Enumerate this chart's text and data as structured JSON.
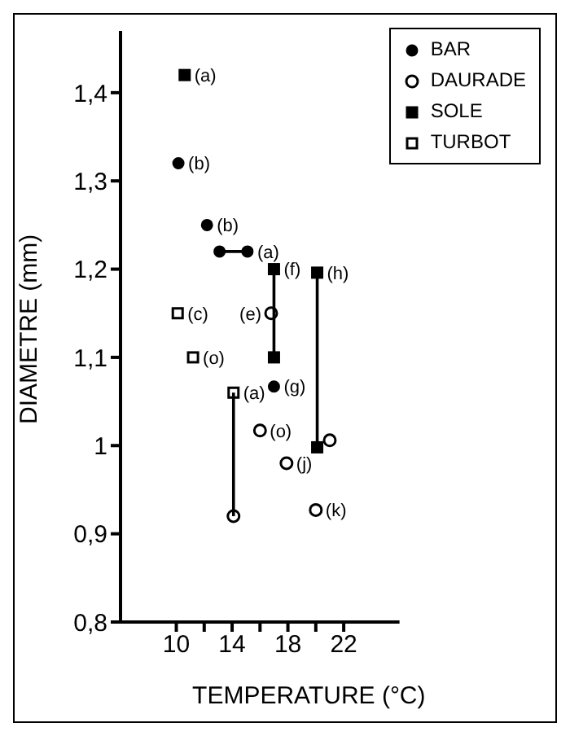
{
  "chart_data": {
    "type": "scatter",
    "xlabel": "TEMPERATURE (°C)",
    "ylabel": "DIAMETRE  (mm)",
    "xlim": [
      6,
      26
    ],
    "xticks": [
      10,
      {
        "value": 12,
        "label": null
      },
      14,
      {
        "value": 16,
        "label": null
      },
      18,
      {
        "value": 20,
        "label": null
      },
      22
    ],
    "ylim": [
      0.8,
      1.47
    ],
    "yticks": [
      {
        "value": 0.8,
        "label": "0,8"
      },
      {
        "value": 0.9,
        "label": "0,9"
      },
      1,
      {
        "value": 1.1,
        "label": "1,1"
      },
      {
        "value": 1.2,
        "label": "1,2"
      },
      {
        "value": 1.3,
        "label": "1,3"
      },
      {
        "value": 1.4,
        "label": "1,4"
      }
    ],
    "legend": "top right",
    "grid": false,
    "series": [
      {
        "name": "BAR",
        "color": "#000000",
        "marker": "circle",
        "x": [
          10.15,
          12.2,
          13.1,
          15.1,
          17.0
        ],
        "values": [
          1.32,
          1.25,
          1.22,
          1.22,
          1.067
        ]
      },
      {
        "name": "DAURADE",
        "color": "#ffffff",
        "marker": "circle",
        "x": [
          14.1,
          16.8,
          16.0,
          17.9,
          21.0,
          20.0
        ],
        "values": [
          0.92,
          1.15,
          1.017,
          0.98,
          1.006,
          0.927
        ]
      },
      {
        "name": "SOLE",
        "color": "#000000",
        "marker": "square",
        "x": [
          10.6,
          17.0,
          17.0,
          20.1,
          20.1
        ],
        "values": [
          1.42,
          1.2,
          1.1,
          1.196,
          0.998
        ]
      },
      {
        "name": "TURBOT",
        "color": "#ffffff",
        "marker": "square",
        "x": [
          10.1,
          11.2,
          14.1
        ],
        "values": [
          1.15,
          1.1,
          1.06
        ]
      },
      {
        "type": "line",
        "color": "#000000",
        "marker": "none",
        "x": [
          13.1,
          15.1
        ],
        "values": [
          1.22,
          1.22
        ]
      },
      {
        "type": "line",
        "color": "#000000",
        "marker": "none",
        "x": [
          14.1,
          14.1
        ],
        "values": [
          1.06,
          0.92
        ]
      },
      {
        "type": "line",
        "color": "#000000",
        "marker": "none",
        "x": [
          17.0,
          17.0
        ],
        "values": [
          1.2,
          1.1
        ]
      },
      {
        "type": "line",
        "color": "#000000",
        "marker": "none",
        "x": [
          20.1,
          20.1
        ],
        "values": [
          1.196,
          0.998
        ]
      }
    ],
    "annotations": [
      {
        "text": "(a)",
        "x": 10.6,
        "y": 1.42
      },
      {
        "text": "(b)",
        "x": 10.15,
        "y": 1.32
      },
      {
        "text": "(b)",
        "x": 12.2,
        "y": 1.25
      },
      {
        "text": "(a)",
        "x": 15.1,
        "y": 1.22
      },
      {
        "text": "(f)",
        "x": 17.0,
        "y": 1.2
      },
      {
        "text": "(h)",
        "x": 20.1,
        "y": 1.196
      },
      {
        "text": "(c)",
        "x": 10.1,
        "y": 1.15
      },
      {
        "text": "(e)",
        "x": 16.8,
        "y": 1.15
      },
      {
        "text": "(o)",
        "x": 11.2,
        "y": 1.1
      },
      {
        "text": "(a)",
        "x": 14.1,
        "y": 1.06
      },
      {
        "text": "(g)",
        "x": 17.0,
        "y": 1.067
      },
      {
        "text": "(o)",
        "x": 16.0,
        "y": 1.017
      },
      {
        "text": "(j)",
        "x": 17.9,
        "y": 0.98
      },
      {
        "text": "(k)",
        "x": 20.0,
        "y": 0.927
      }
    ]
  }
}
